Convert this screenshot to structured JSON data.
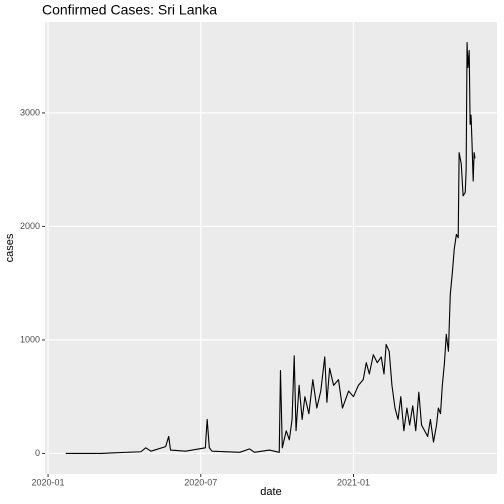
{
  "chart_data": {
    "type": "line",
    "title": "Confirmed Cases: Sri Lanka",
    "x_label": "date",
    "y_label": "cases",
    "x": [
      2020.058,
      2020.175,
      2020.207,
      2020.304,
      2020.32,
      2020.337,
      2020.385,
      2020.395,
      2020.401,
      2020.45,
      2020.515,
      2020.521,
      2020.528,
      2020.537,
      2020.628,
      2020.66,
      2020.676,
      2020.725,
      2020.757,
      2020.761,
      2020.767,
      2020.78,
      2020.79,
      2020.799,
      2020.806,
      2020.812,
      2020.822,
      2020.832,
      2020.841,
      2020.854,
      2020.867,
      2020.88,
      2020.893,
      2020.906,
      2020.913,
      2020.922,
      2020.935,
      2020.951,
      2020.964,
      2020.984,
      2021.0,
      2021.016,
      2021.032,
      2021.042,
      2021.052,
      2021.065,
      2021.078,
      2021.091,
      2021.1,
      2021.107,
      2021.117,
      2021.126,
      2021.136,
      2021.146,
      2021.155,
      2021.165,
      2021.175,
      2021.184,
      2021.194,
      2021.204,
      2021.214,
      2021.223,
      2021.233,
      2021.243,
      2021.252,
      2021.262,
      2021.272,
      2021.278,
      2021.285,
      2021.291,
      2021.298,
      2021.304,
      2021.311,
      2021.317,
      2021.324,
      2021.33,
      2021.337,
      2021.343,
      2021.346,
      2021.353,
      2021.359,
      2021.366,
      2021.369,
      2021.372,
      2021.375,
      2021.379,
      2021.382,
      2021.385,
      2021.388,
      2021.392,
      2021.395,
      2021.398
    ],
    "series": [
      {
        "name": "cases",
        "color": "#000000",
        "values": [
          0,
          0,
          5,
          15,
          50,
          20,
          60,
          150,
          30,
          20,
          50,
          300,
          50,
          20,
          10,
          40,
          10,
          30,
          10,
          730,
          50,
          200,
          120,
          300,
          860,
          200,
          600,
          300,
          500,
          350,
          650,
          400,
          550,
          850,
          450,
          750,
          600,
          650,
          400,
          550,
          500,
          600,
          650,
          800,
          700,
          870,
          800,
          850,
          700,
          960,
          900,
          600,
          400,
          300,
          500,
          200,
          400,
          250,
          420,
          200,
          540,
          250,
          200,
          150,
          300,
          100,
          250,
          400,
          350,
          600,
          800,
          1050,
          900,
          1400,
          1600,
          1800,
          1930,
          1900,
          2650,
          2550,
          2270,
          2300,
          2500,
          3620,
          3400,
          3550,
          2900,
          2980,
          2750,
          2400,
          2650,
          2600
        ]
      }
    ],
    "xlim": [
      2019.99,
      2021.47
    ],
    "xticks": [
      {
        "value": 2020.0,
        "label": "2020-01"
      },
      {
        "value": 2020.5,
        "label": "2020-07"
      },
      {
        "value": 2021.0,
        "label": "2021-01"
      }
    ],
    "ylim": [
      -181,
      3801
    ],
    "yticks": [
      0,
      1000,
      2000,
      3000
    ],
    "grid": true
  }
}
